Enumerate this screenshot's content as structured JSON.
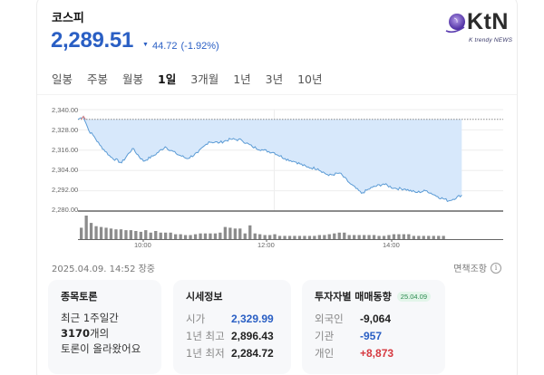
{
  "header": {
    "index_name": "코스피",
    "price": "2,289.51",
    "change_direction": "down",
    "change_icon": "triangle-down-icon",
    "change_value": "44.72",
    "change_percent": "(-1.92%)",
    "colors": {
      "down": "#2a5fc4",
      "up": "#d6383f"
    }
  },
  "logo": {
    "text": "KtN",
    "subtitle": "K trendy NEWS"
  },
  "tabs": [
    {
      "label": "일봉",
      "active": false
    },
    {
      "label": "주봉",
      "active": false
    },
    {
      "label": "월봉",
      "active": false
    },
    {
      "label": "1일",
      "active": true
    },
    {
      "label": "3개월",
      "active": false
    },
    {
      "label": "1년",
      "active": false
    },
    {
      "label": "3년",
      "active": false
    },
    {
      "label": "10년",
      "active": false
    }
  ],
  "chart_data": {
    "type": "line",
    "title": "코스피 1일",
    "ylabel": "",
    "xlabel": "",
    "y_ticks": [
      "2,340.00",
      "2,328.00",
      "2,316.00",
      "2,304.00",
      "2,292.00",
      "2,280.00"
    ],
    "ylim": [
      2280,
      2340
    ],
    "x_ticks": [
      "10:00",
      "12:00",
      "14:00"
    ],
    "previous_close": 2334.23,
    "series": [
      {
        "name": "코스피",
        "x": [
          "09:00",
          "09:05",
          "09:10",
          "09:15",
          "09:20",
          "09:30",
          "09:40",
          "09:50",
          "10:00",
          "10:10",
          "10:20",
          "10:30",
          "10:40",
          "10:50",
          "11:00",
          "11:10",
          "11:20",
          "11:30",
          "11:40",
          "11:50",
          "12:00",
          "12:10",
          "12:20",
          "12:30",
          "12:40",
          "12:50",
          "13:00",
          "13:10",
          "13:20",
          "13:30",
          "13:40",
          "13:50",
          "14:00",
          "14:10",
          "14:20",
          "14:30",
          "14:40",
          "14:52"
        ],
        "values": [
          2334.2,
          2336.0,
          2327.5,
          2324.0,
          2319.0,
          2312.0,
          2308.5,
          2317.0,
          2309.5,
          2313.0,
          2318.0,
          2314.0,
          2311.0,
          2314.5,
          2321.0,
          2320.5,
          2322.5,
          2322.0,
          2318.0,
          2316.0,
          2314.5,
          2311.0,
          2309.0,
          2306.0,
          2305.0,
          2301.0,
          2302.5,
          2296.0,
          2290.5,
          2294.0,
          2296.0,
          2293.5,
          2293.0,
          2291.0,
          2292.0,
          2288.5,
          2286.0,
          2289.5
        ]
      }
    ],
    "volume_bars": [
      28,
      58,
      40,
      32,
      30,
      28,
      26,
      24,
      24,
      22,
      22,
      20,
      18,
      22,
      16,
      20,
      16,
      16,
      16,
      12,
      12,
      10,
      10,
      12,
      14,
      14,
      14,
      14,
      16,
      30,
      28,
      26,
      26,
      14,
      34,
      14,
      12,
      10,
      10,
      12,
      8,
      8,
      8,
      8,
      8,
      8,
      8,
      8,
      10,
      10,
      12,
      14,
      16,
      16,
      10,
      10,
      10,
      10,
      10,
      10,
      8,
      8,
      10,
      12,
      12,
      12,
      12,
      8,
      8,
      8,
      8,
      8,
      8,
      8
    ]
  },
  "footer": {
    "timestamp": "2025.04.09. 14:52 장중",
    "disclaimer": "면책조항",
    "info_icon": "info-icon"
  },
  "discussion": {
    "title": "종목토론",
    "line1": "최근 1주일간",
    "count": "3170",
    "count_suffix": "개의",
    "line3": "토론이 올라왔어요"
  },
  "market_info": {
    "title": "시세정보",
    "rows": [
      {
        "label": "시가",
        "value": "2,329.99"
      },
      {
        "label": "1년 최고",
        "value": "2,896.43"
      },
      {
        "label": "1년 최저",
        "value": "2,284.72"
      }
    ]
  },
  "investor_trend": {
    "title": "투자자별 매매동향",
    "date_badge": "25.04.09",
    "rows": [
      {
        "label": "외국인",
        "value": "-9,064"
      },
      {
        "label": "기관",
        "value": "-957"
      },
      {
        "label": "개인",
        "value": "+8,873"
      }
    ]
  }
}
